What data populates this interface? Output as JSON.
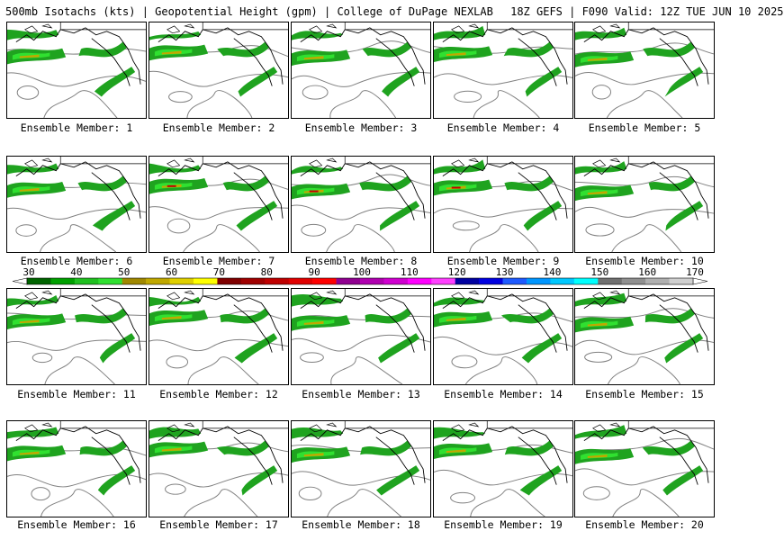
{
  "header": {
    "title": "500mb Isotachs (kts) | Geopotential Height (gpm) | College of DuPage NEXLAB",
    "run": "18Z GEFS | F090 Valid: 12Z TUE JUN 10 2025"
  },
  "members": [
    {
      "label": "Ensemble Member: 1"
    },
    {
      "label": "Ensemble Member: 2"
    },
    {
      "label": "Ensemble Member: 3"
    },
    {
      "label": "Ensemble Member: 4"
    },
    {
      "label": "Ensemble Member: 5"
    },
    {
      "label": "Ensemble Member: 6"
    },
    {
      "label": "Ensemble Member: 7"
    },
    {
      "label": "Ensemble Member: 8"
    },
    {
      "label": "Ensemble Member: 9"
    },
    {
      "label": "Ensemble Member: 10"
    },
    {
      "label": "Ensemble Member: 11"
    },
    {
      "label": "Ensemble Member: 12"
    },
    {
      "label": "Ensemble Member: 13"
    },
    {
      "label": "Ensemble Member: 14"
    },
    {
      "label": "Ensemble Member: 15"
    },
    {
      "label": "Ensemble Member: 16"
    },
    {
      "label": "Ensemble Member: 17"
    },
    {
      "label": "Ensemble Member: 18"
    },
    {
      "label": "Ensemble Member: 19"
    },
    {
      "label": "Ensemble Member: 20"
    }
  ],
  "colorbar": {
    "ticks": [
      "30",
      "40",
      "50",
      "60",
      "70",
      "80",
      "90",
      "100",
      "110",
      "120",
      "130",
      "140",
      "150",
      "160",
      "170"
    ],
    "colors": [
      "#006400",
      "#00a000",
      "#20c020",
      "#30e030",
      "#a08800",
      "#c0a800",
      "#e0d000",
      "#ffff00",
      "#800000",
      "#a00000",
      "#c00000",
      "#e00000",
      "#ff0000",
      "#900090",
      "#b000b0",
      "#d000d0",
      "#ff00ff",
      "#ff40ff",
      "#0000a0",
      "#0000e0",
      "#1e5aff",
      "#0096ff",
      "#00c8ff",
      "#00ffff",
      "#707070",
      "#909090",
      "#b0b0b0",
      "#d0d0d0"
    ]
  },
  "colors": {
    "jet_low": "#1fa31f",
    "jet_mid": "#30e030",
    "jet_core": "#c0a800",
    "jet_max": "#c00000",
    "contour": "#808080",
    "coast": "#000000"
  }
}
